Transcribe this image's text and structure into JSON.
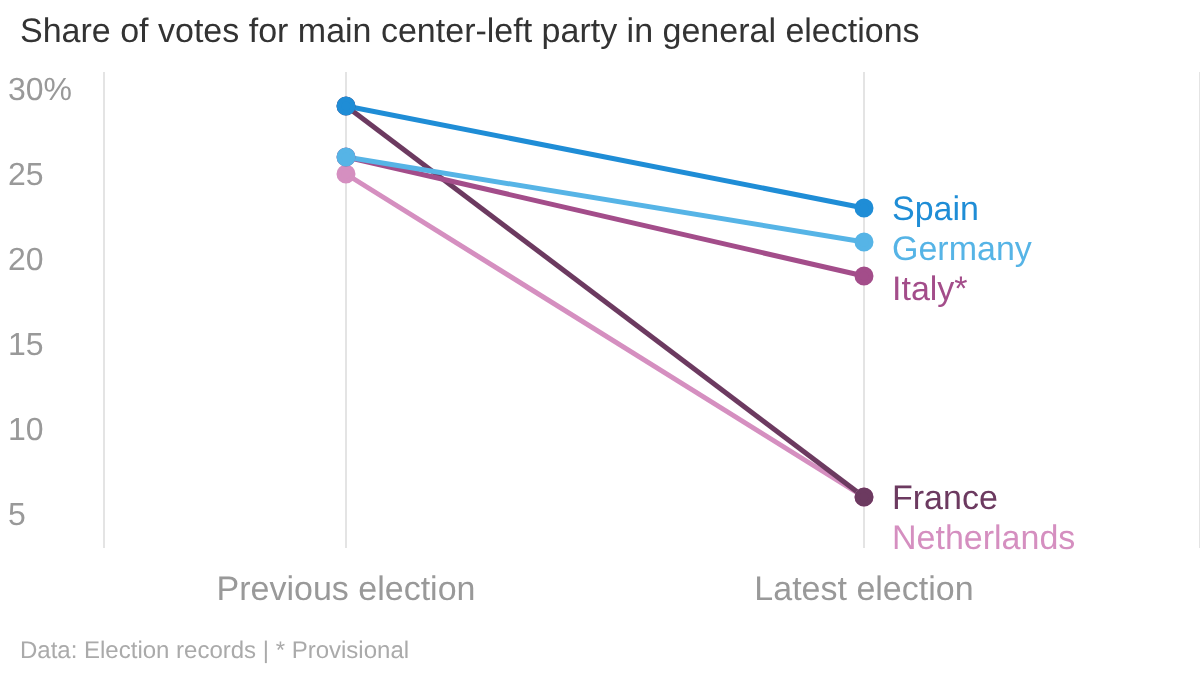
{
  "chart_data": {
    "type": "line",
    "title": "Share of votes for main center-left party in general elections",
    "categories": [
      "Previous election",
      "Latest election"
    ],
    "series": [
      {
        "name": "Spain",
        "color": "#1f8dd6",
        "values": [
          29,
          23
        ]
      },
      {
        "name": "Germany",
        "color": "#56b4e6",
        "values": [
          26,
          21
        ]
      },
      {
        "name": "Italy*",
        "color": "#a34d8a",
        "values": [
          26,
          19
        ]
      },
      {
        "name": "France",
        "color": "#6c3a60",
        "values": [
          29,
          6
        ]
      },
      {
        "name": "Netherlands",
        "color": "#d58fc0",
        "values": [
          25,
          6
        ]
      }
    ],
    "ylim": [
      3,
      31
    ],
    "yticks": [
      5,
      10,
      15,
      20,
      25,
      {
        "value": 30,
        "label": "30%"
      }
    ],
    "grid": "x",
    "marker": "circle",
    "line_style": "solid",
    "legend": false,
    "annotations": [
      "Data: Election records | * Provisional"
    ]
  }
}
